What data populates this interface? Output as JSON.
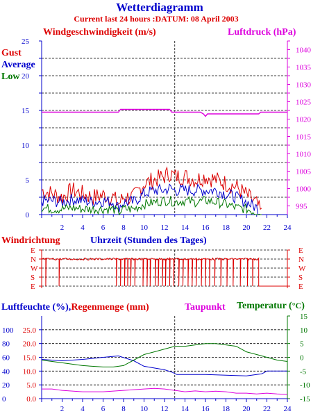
{
  "header": {
    "title": "Wetterdiagramm",
    "subtitle": "Current last 24 hours :DATUM: 08 April 2003"
  },
  "colors": {
    "red": "#dd0000",
    "blue": "#0000cc",
    "green": "#007700",
    "magenta": "#dd00dd",
    "grid": "#000000"
  },
  "chart_data": [
    {
      "id": "wind",
      "type": "line",
      "ylabel_left": "Windgeschwindigkeit (m/s)",
      "ylabel_right": "Luftdruck (hPa)",
      "x_range": [
        0,
        24
      ],
      "x_ticks": [
        2,
        4,
        6,
        8,
        10,
        12,
        14,
        16,
        18,
        20,
        22,
        24
      ],
      "ylim_left": [
        0,
        25
      ],
      "y_ticks_left": [
        0,
        5,
        10,
        15,
        20,
        25
      ],
      "ylim_right": [
        992.5,
        1042.5
      ],
      "y_ticks_right": [
        995,
        1000,
        1005,
        1010,
        1015,
        1020,
        1025,
        1030,
        1035,
        1040
      ],
      "grid": true,
      "legend": [
        "Gust",
        "Average",
        "Low"
      ],
      "series": [
        {
          "name": "Gust",
          "axis": "left",
          "color": "#dd0000",
          "x": [
            0,
            1,
            2,
            3,
            4,
            5,
            6,
            7,
            7.5,
            8,
            9,
            10,
            11,
            12,
            12.5,
            13,
            14,
            15,
            16,
            17,
            18,
            19,
            20,
            21,
            21.5
          ],
          "y": [
            3.5,
            3.0,
            2.5,
            3.5,
            3.0,
            2.5,
            2.8,
            2.5,
            1.5,
            2.5,
            2.5,
            4.5,
            5.0,
            5.5,
            6.0,
            5.5,
            5.5,
            5.0,
            5.5,
            5.0,
            4.5,
            4.0,
            2.8,
            1.5,
            0
          ]
        },
        {
          "name": "Average",
          "axis": "left",
          "color": "#0000cc",
          "x": [
            0,
            1,
            2,
            3,
            4,
            5,
            6,
            7,
            7.5,
            8,
            9,
            10,
            11,
            12,
            12.5,
            13,
            14,
            15,
            16,
            17,
            18,
            19,
            20,
            21,
            21.5
          ],
          "y": [
            2.0,
            2.0,
            1.8,
            2.2,
            2.0,
            1.8,
            2.0,
            1.8,
            1.0,
            1.8,
            1.8,
            3.0,
            3.5,
            3.5,
            3.8,
            3.5,
            3.5,
            3.5,
            3.5,
            3.5,
            3.0,
            2.5,
            1.8,
            1.0,
            0
          ]
        },
        {
          "name": "Low",
          "axis": "left",
          "color": "#007700",
          "x": [
            0,
            1,
            2,
            3,
            4,
            5,
            6,
            7,
            7.5,
            8,
            9,
            10,
            11,
            12,
            12.5,
            13,
            14,
            15,
            16,
            17,
            18,
            19,
            20,
            21,
            21.5
          ],
          "y": [
            1.0,
            0.8,
            0.8,
            1.0,
            0.8,
            0.8,
            0.8,
            0.8,
            0.3,
            0.8,
            0.8,
            1.5,
            1.8,
            2.0,
            2.0,
            1.8,
            2.0,
            1.8,
            2.0,
            1.8,
            1.5,
            1.0,
            0.8,
            0.3,
            0
          ]
        },
        {
          "name": "Luftdruck",
          "axis": "right",
          "color": "#dd00dd",
          "x": [
            0,
            7.5,
            7.7,
            12.5,
            12.7,
            15.5,
            15.8,
            16.0,
            16.2,
            21.2,
            21.4,
            24
          ],
          "y": [
            1022,
            1022,
            1022.8,
            1022.8,
            1022,
            1022,
            1021.5,
            1020.8,
            1021.5,
            1021.5,
            1022,
            1022
          ]
        }
      ]
    },
    {
      "id": "direction",
      "type": "line",
      "xlabel": "Uhrzeit (Stunden des Tages)",
      "ylabel_left": "Windrichtung",
      "y_categories": [
        "E",
        "N",
        "W",
        "S",
        "E"
      ],
      "x_range": [
        0,
        24
      ],
      "grid": true,
      "series": [
        {
          "name": "Windrichtung",
          "color": "#dd0000",
          "base": "N",
          "drops_to_E_at": [
            0.4,
            1.7,
            7.2,
            7.6,
            8.0,
            8.3,
            8.6,
            9.0,
            9.8,
            10.2,
            10.5,
            11.0,
            11.3,
            11.7,
            12.0,
            12.4,
            12.8,
            13.3,
            13.7,
            14.2,
            14.6,
            15.0,
            15.5,
            15.9,
            16.3,
            16.8,
            17.4,
            18.0,
            18.6,
            19.4,
            20.1,
            20.6
          ],
          "end_E_from": 21.2
        }
      ]
    },
    {
      "id": "humidity",
      "type": "line",
      "ylabel_left": "Luftfeuchte (%),",
      "ylabel_left2": "Regenmenge (mm)",
      "ylabel_mid": "Taupunkt",
      "ylabel_right": "Temperatur (",
      "ylabel_right_unit": "°C",
      "ylabel_right_close": ")",
      "x_range": [
        0,
        24
      ],
      "x_ticks": [
        2,
        4,
        6,
        8,
        10,
        12,
        14,
        16,
        18,
        20,
        22,
        24
      ],
      "ylim_left": [
        0,
        120
      ],
      "y_ticks_left_pct": [
        0,
        20,
        40,
        60,
        80,
        100
      ],
      "y_ticks_left_mm": [
        "0.0",
        "5.0",
        "10.0",
        "15.0",
        "20.0",
        "25.0"
      ],
      "ylim_right": [
        -15,
        15
      ],
      "y_ticks_right": [
        -15,
        -10,
        -5,
        0,
        5,
        10,
        15
      ],
      "grid": true,
      "series": [
        {
          "name": "Luftfeuchte",
          "axis": "left",
          "color": "#0000cc",
          "x": [
            0,
            2,
            4,
            6,
            7.5,
            9,
            10,
            12,
            12.8,
            13.2,
            16,
            18,
            20,
            21.5,
            22,
            24
          ],
          "y": [
            57,
            55,
            57,
            60,
            62,
            55,
            47,
            42,
            38,
            35,
            35,
            34,
            33,
            36,
            40,
            40
          ]
        },
        {
          "name": "Temperatur",
          "axis": "right",
          "color": "#007700",
          "x": [
            0,
            2,
            4,
            6,
            7,
            8,
            9,
            10,
            11,
            12,
            13,
            14,
            15,
            16,
            17,
            18,
            19,
            20,
            21,
            22,
            23,
            24
          ],
          "y": [
            -1,
            -2,
            -3,
            -3.5,
            -3.5,
            -3,
            -1,
            1,
            2,
            3,
            4,
            4,
            4.5,
            5,
            5,
            4.5,
            4,
            2,
            1,
            0,
            -1,
            -1.5
          ]
        },
        {
          "name": "Taupunkt",
          "axis": "right",
          "color": "#dd00dd",
          "x": [
            0,
            1,
            2,
            4,
            6,
            8,
            10,
            11,
            12,
            13,
            14,
            15,
            16,
            17,
            18,
            19,
            20,
            21,
            22,
            23,
            24
          ],
          "y": [
            -11.5,
            -11.5,
            -12,
            -12.5,
            -12.5,
            -12,
            -11.5,
            -11.3,
            -11.5,
            -12,
            -12.5,
            -12.2,
            -12.5,
            -12.3,
            -12.5,
            -13,
            -13,
            -13.3,
            -13,
            -13.3,
            -13.5
          ]
        }
      ]
    }
  ]
}
